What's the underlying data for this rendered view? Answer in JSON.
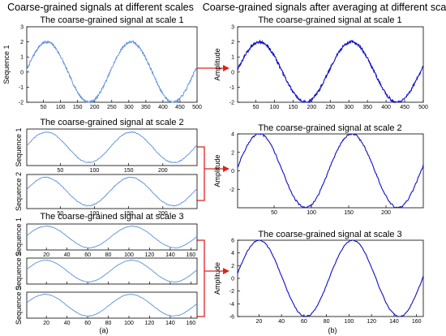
{
  "figure": {
    "left_heading": "Coarse-grained signals at different scales",
    "right_heading": "Coarse-grained signals after averaging at different scales",
    "left_caption": "(a)",
    "right_caption": "(b)"
  },
  "colors": {
    "left_line": "#5a8fe0",
    "right_line": "#1010c8",
    "bracket": "#e02020",
    "axis": "#000000"
  },
  "chart_data": [
    {
      "id": "a1",
      "type": "line",
      "panel": "left",
      "title": "The coarse-grained signal at scale 1",
      "series": [
        {
          "name": "Sequence 1",
          "ylabel": "Sequence 1",
          "points": 500,
          "period": 247,
          "amplitude": 2,
          "phase": 0.05,
          "noise": 0.09
        }
      ],
      "xlim": [
        1,
        500
      ],
      "ylim": [
        -2,
        3
      ],
      "xticks": [
        50,
        100,
        150,
        200,
        250,
        300,
        350,
        400,
        450,
        500
      ],
      "yticks": [
        -2,
        -1,
        0,
        1,
        2,
        3
      ]
    },
    {
      "id": "a2",
      "type": "line",
      "panel": "left",
      "title": "The coarse-grained signal at scale 2",
      "series": [
        {
          "name": "Sequence 1",
          "ylabel": "Sequence 1",
          "points": 250,
          "period": 124,
          "amplitude": 2,
          "phase": 0.05,
          "noise": 0.07
        },
        {
          "name": "Sequence 2",
          "ylabel": "Sequence 2",
          "points": 250,
          "period": 124,
          "amplitude": 2,
          "phase": 0.1,
          "noise": 0.07
        }
      ],
      "xlim": [
        1,
        250
      ],
      "ylim": [
        -2.4,
        2.4
      ],
      "xticks": [
        50,
        100,
        150,
        200
      ],
      "yticks": []
    },
    {
      "id": "a3",
      "type": "line",
      "panel": "left",
      "title": "The coarse-grained signal at scale 3",
      "series": [
        {
          "name": "Sequence 1",
          "ylabel": "Sequence 1",
          "points": 166,
          "period": 83,
          "amplitude": 2,
          "phase": 0.05,
          "noise": 0.05
        },
        {
          "name": "Sequence 2",
          "ylabel": "Sequence 2",
          "points": 166,
          "period": 83,
          "amplitude": 2,
          "phase": 0.1,
          "noise": 0.05
        },
        {
          "name": "Sequence 3",
          "ylabel": "Sequence 3",
          "points": 166,
          "period": 83,
          "amplitude": 2,
          "phase": 0.15,
          "noise": 0.05
        }
      ],
      "xlim": [
        1,
        166
      ],
      "ylim": [
        -2.4,
        2.4
      ],
      "xticks": [
        20,
        40,
        60,
        80,
        100,
        120,
        140,
        160
      ],
      "yticks": []
    },
    {
      "id": "b1",
      "type": "line",
      "panel": "right",
      "title": "The coarse-grained signal at scale 1",
      "series": [
        {
          "name": "Amplitude",
          "ylabel": "Amplitude",
          "points": 500,
          "period": 247,
          "amplitude": 2,
          "phase": 0.05,
          "noise": 0.09
        }
      ],
      "xlim": [
        1,
        500
      ],
      "ylim": [
        -2,
        3
      ],
      "xticks": [
        50,
        100,
        150,
        200,
        250,
        300,
        350,
        400,
        450,
        500
      ],
      "yticks": [
        -2,
        -1,
        0,
        1,
        2,
        3
      ]
    },
    {
      "id": "b2",
      "type": "line",
      "panel": "right",
      "title": "The coarse-grained signal at scale 2",
      "series": [
        {
          "name": "Amplitude",
          "ylabel": "Amplitude",
          "points": 250,
          "period": 124,
          "amplitude": 4,
          "phase": 0.05,
          "noise": 0.1
        }
      ],
      "xlim": [
        1,
        250
      ],
      "ylim": [
        -4,
        4
      ],
      "xticks": [
        50,
        100,
        150,
        200
      ],
      "yticks": [
        -2,
        0,
        2,
        4
      ]
    },
    {
      "id": "b3",
      "type": "line",
      "panel": "right",
      "title": "The coarse-grained signal at scale 3",
      "series": [
        {
          "name": "Amplitude",
          "ylabel": "Amplitude",
          "points": 166,
          "period": 83,
          "amplitude": 6,
          "phase": 0.05,
          "noise": 0.1
        }
      ],
      "xlim": [
        1,
        166
      ],
      "ylim": [
        -6,
        6
      ],
      "xticks": [
        20,
        40,
        60,
        80,
        100,
        120,
        140,
        160
      ],
      "yticks": [
        -6,
        -4,
        -2,
        0,
        2,
        4,
        6
      ]
    }
  ]
}
